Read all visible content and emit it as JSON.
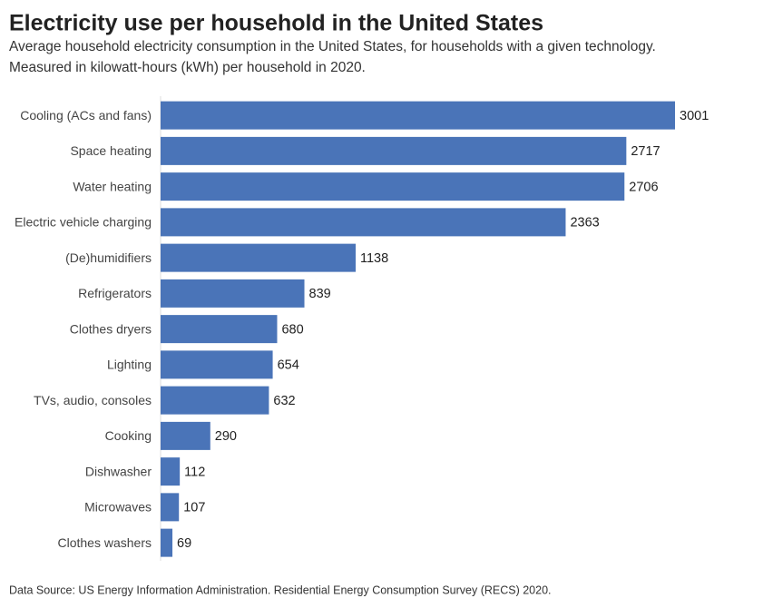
{
  "chart_data": {
    "type": "bar",
    "orientation": "horizontal",
    "title": "Electricity use per household in the United States",
    "subtitle": [
      "Average household electricity consumption in the United States, for households with a given technology.",
      "Measured in kilowatt-hours (kWh) per household in 2020."
    ],
    "source": "Data Source: US Energy Information Administration. Residential Energy Consumption Survey (RECS) 2020.",
    "categories": [
      "Cooling (ACs and fans)",
      "Space heating",
      "Water heating",
      "Electric vehicle charging",
      "(De)humidifiers",
      "Refrigerators",
      "Clothes dryers",
      "Lighting",
      "TVs, audio, consoles",
      "Cooking",
      "Dishwasher",
      "Microwaves",
      "Clothes washers"
    ],
    "values": [
      3001,
      2717,
      2706,
      2363,
      1138,
      839,
      680,
      654,
      632,
      290,
      112,
      107,
      69
    ],
    "color": "#4a74b8",
    "xlim": [
      0,
      3001
    ]
  }
}
